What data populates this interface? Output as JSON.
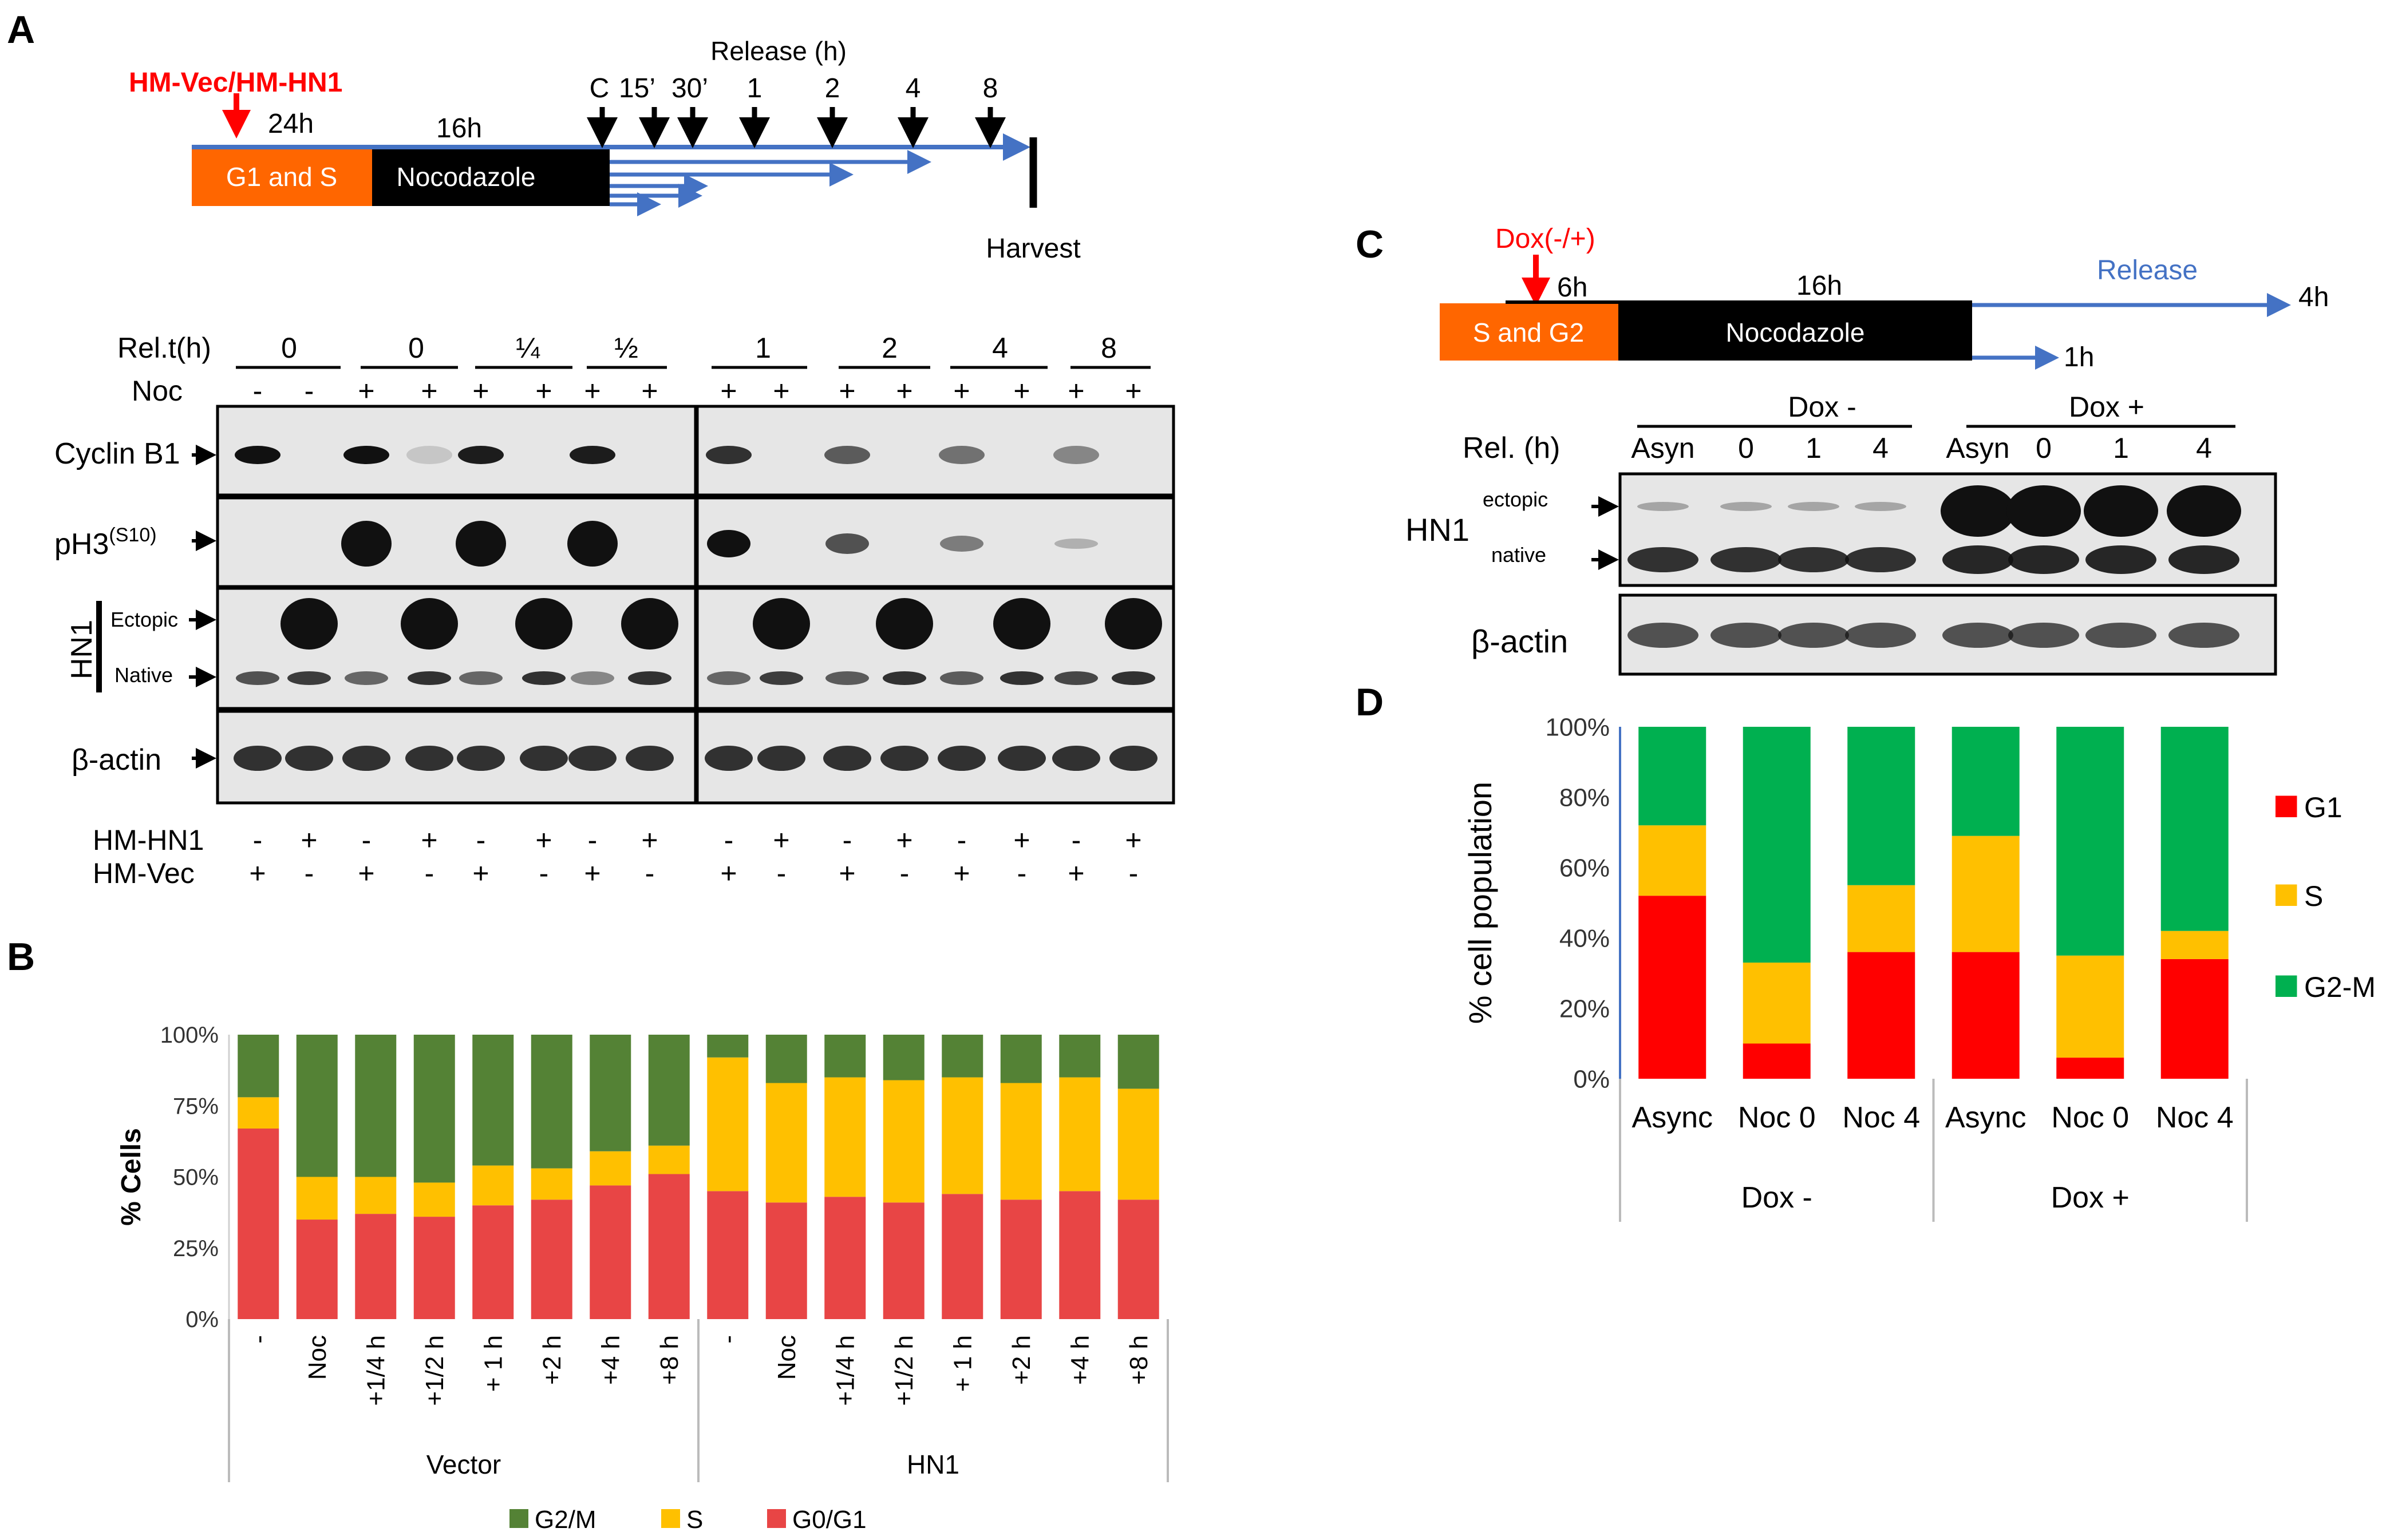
{
  "colors": {
    "red": "#ff0000",
    "orange": "#ff6600",
    "blue": "#4472c4",
    "g2m_b": "#548235",
    "s_b": "#ffc000",
    "g1_b": "#e84545",
    "g1_d": "#ff0000",
    "s_d": "#ffc000",
    "g2m_d": "#00b050"
  },
  "panel_labels": {
    "a": "A",
    "b": "B",
    "c": "C",
    "d": "D"
  },
  "panel_a": {
    "timeline": {
      "treatment": "HM-Vec/HM-HN1",
      "g1s_box": "G1 and S",
      "noc_box": "Nocodazole",
      "t24": "24h",
      "t16": "16h",
      "release_title": "Release (h)",
      "release_points": [
        "C",
        "15’",
        "30’",
        "1",
        "2",
        "4",
        "8"
      ],
      "harvest": "Harvest"
    },
    "blot": {
      "relt_label": "Rel.t(h)",
      "relt_values": [
        "0",
        "0",
        "¼",
        "½",
        "1",
        "2",
        "4",
        "8"
      ],
      "noc_label": "Noc",
      "noc_signs": [
        "-",
        "-",
        "+",
        "+",
        "+",
        "+",
        "+",
        "+",
        "+",
        "+",
        "+",
        "+",
        "+",
        "+",
        "+",
        "+"
      ],
      "rows": {
        "cyclin": "Cyclin B1",
        "ph3_main": "pH3",
        "ph3_sup": "(S10)",
        "hn1": "HN1",
        "ectopic": "Ectopic",
        "native": "Native",
        "actin": "β-actin"
      },
      "hmhn1_label": "HM-HN1",
      "hmhn1_signs": [
        "-",
        "+",
        "-",
        "+",
        "-",
        "+",
        "-",
        "+",
        "-",
        "+",
        "-",
        "+",
        "-",
        "+",
        "-",
        "+"
      ],
      "hmvec_label": "HM-Vec",
      "hmvec_signs": [
        "+",
        "-",
        "+",
        "-",
        "+",
        "-",
        "+",
        "-",
        "+",
        "-",
        "+",
        "-",
        "+",
        "-",
        "+",
        "-"
      ]
    }
  },
  "panel_c": {
    "treatment": "Dox(-/+)",
    "sg2_box": "S and G2",
    "noc_box": "Nocodazole",
    "t6": "6h",
    "t16": "16h",
    "release": "Release",
    "t4": "4h",
    "t1": "1h",
    "dox_minus": "Dox -",
    "dox_plus": "Dox +",
    "rel_label": "Rel. (h)",
    "rel_values": [
      "Asyn",
      "0",
      "1",
      "4",
      "Asyn",
      "0",
      "1",
      "4"
    ],
    "hn1": "HN1",
    "ectopic": "ectopic",
    "native": "native",
    "actin": "β-actin"
  },
  "chart_data": [
    {
      "panel": "B",
      "type": "bar",
      "stacked": true,
      "categories": [
        "-",
        "Noc",
        "+1/4 h",
        "+1/2 h",
        "+ 1 h",
        "+2 h",
        "+4 h",
        "+8 h",
        "-",
        "Noc",
        "+1/4 h",
        "+1/2 h",
        "+ 1 h",
        "+2 h",
        "+4 h",
        "+8 h"
      ],
      "groups": [
        {
          "name": "Vector",
          "count": 8
        },
        {
          "name": "HN1",
          "count": 8
        }
      ],
      "series": [
        {
          "name": "G0/G1",
          "values": [
            67,
            35,
            37,
            36,
            40,
            42,
            47,
            51,
            45,
            41,
            43,
            41,
            44,
            42,
            45,
            42
          ]
        },
        {
          "name": "S",
          "values": [
            11,
            15,
            13,
            12,
            14,
            11,
            12,
            10,
            47,
            42,
            42,
            43,
            41,
            41,
            40,
            39
          ]
        },
        {
          "name": "G2/M",
          "values": [
            22,
            50,
            50,
            52,
            46,
            47,
            41,
            39,
            8,
            17,
            15,
            16,
            15,
            17,
            15,
            19
          ]
        }
      ],
      "ylabel": "% Cells",
      "xlabel": "",
      "ylim": [
        0,
        100
      ],
      "yticks": [
        "0%",
        "25%",
        "50%",
        "75%",
        "100%"
      ],
      "legend": "bottom"
    },
    {
      "panel": "D",
      "type": "bar",
      "stacked": true,
      "categories": [
        "Async",
        "Noc 0",
        "Noc 4",
        "Async",
        "Noc 0",
        "Noc 4"
      ],
      "groups": [
        {
          "name": "Dox -",
          "count": 3
        },
        {
          "name": "Dox +",
          "count": 3
        }
      ],
      "series": [
        {
          "name": "G1",
          "values": [
            52,
            10,
            36,
            36,
            6,
            34
          ]
        },
        {
          "name": "S",
          "values": [
            20,
            23,
            19,
            33,
            29,
            8
          ]
        },
        {
          "name": "G2-M",
          "values": [
            28,
            67,
            45,
            31,
            65,
            58
          ]
        }
      ],
      "ylabel": "% cell population",
      "xlabel": "",
      "ylim": [
        0,
        100
      ],
      "yticks": [
        "0%",
        "20%",
        "40%",
        "60%",
        "80%",
        "100%"
      ],
      "legend": "right"
    }
  ]
}
